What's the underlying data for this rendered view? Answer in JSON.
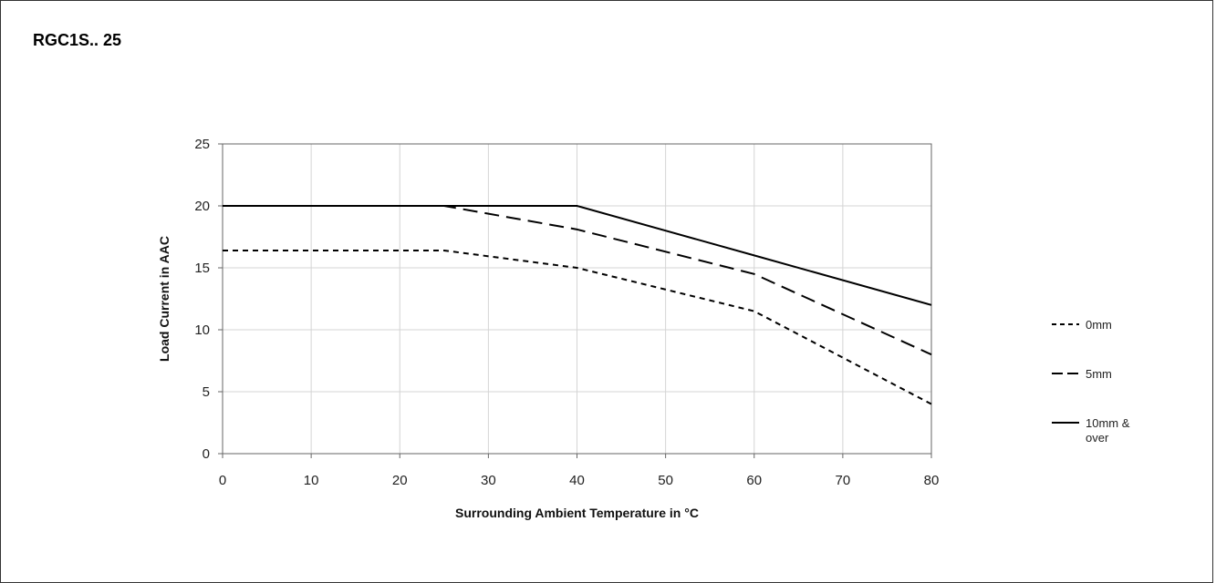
{
  "title": "RGC1S.. 25",
  "chart_data": {
    "type": "line",
    "title": "RGC1S.. 25",
    "xlabel": "Surrounding Ambient Temperature in °C",
    "ylabel": "Load Current in AAC",
    "xlim": [
      0,
      80
    ],
    "ylim": [
      0,
      25
    ],
    "xticks": [
      0,
      10,
      20,
      30,
      40,
      50,
      60,
      70,
      80
    ],
    "yticks": [
      0,
      5,
      10,
      15,
      20,
      25
    ],
    "grid": true,
    "legend_position": "right",
    "series": [
      {
        "name": "0mm",
        "style": "short-dash",
        "color": "#000000",
        "x": [
          0,
          25,
          40,
          60,
          80
        ],
        "y": [
          16.4,
          16.4,
          15,
          11.5,
          4
        ]
      },
      {
        "name": "5mm",
        "style": "long-dash",
        "color": "#000000",
        "x": [
          0,
          25,
          40,
          60,
          80
        ],
        "y": [
          20,
          20,
          18.1,
          14.5,
          8
        ]
      },
      {
        "name": "10mm & over",
        "name_lines": [
          "10mm &",
          "over"
        ],
        "style": "solid",
        "color": "#000000",
        "x": [
          0,
          40,
          60,
          80
        ],
        "y": [
          20,
          20,
          16,
          12
        ]
      }
    ]
  }
}
